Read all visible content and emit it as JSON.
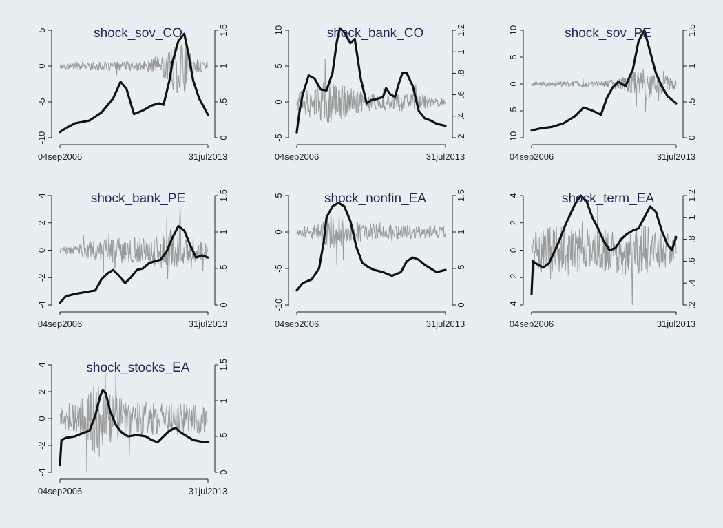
{
  "chart_data": [
    {
      "type": "line",
      "title": "shock_sov_CO",
      "xlim": [
        "04sep2006",
        "31jul2013"
      ],
      "x_tick_labels": [
        "04sep2006",
        "31jul2013"
      ],
      "ylim_left": [
        -10,
        5
      ],
      "y_left_ticks": [
        -10,
        -5,
        0,
        5
      ],
      "ylim_right": [
        0,
        1.5
      ],
      "y_right_ticks": [
        "0",
        ".5",
        "1",
        "1.5"
      ],
      "series": [
        {
          "axis": "right",
          "color": "#111111",
          "style": "thick",
          "x": [
            0,
            0.03,
            0.1,
            0.2,
            0.28,
            0.36,
            0.41,
            0.45,
            0.5,
            0.56,
            0.62,
            0.67,
            0.7,
            0.74,
            0.76,
            0.8,
            0.84,
            0.87,
            0.9,
            0.94,
            1
          ],
          "y": [
            0.08,
            0.12,
            0.2,
            0.24,
            0.35,
            0.55,
            0.78,
            0.68,
            0.33,
            0.38,
            0.45,
            0.48,
            0.46,
            0.8,
            1.05,
            1.35,
            1.45,
            1.15,
            0.8,
            0.55,
            0.32
          ]
        },
        {
          "axis": "left",
          "color": "#9a9a9a",
          "style": "noise",
          "x": [
            0,
            0.58,
            0.72,
            0.76,
            0.82,
            0.88,
            0.93,
            1
          ],
          "y": [
            0.5,
            0.7,
            1.8,
            3.5,
            4.6,
            2.2,
            1.0,
            0.6
          ]
        }
      ]
    },
    {
      "type": "line",
      "title": "shock_bank_CO",
      "xlim": [
        "04sep2006",
        "31jul2013"
      ],
      "x_tick_labels": [
        "04sep2006",
        "31jul2013"
      ],
      "ylim_left": [
        -5,
        10
      ],
      "y_left_ticks": [
        -5,
        0,
        5,
        10
      ],
      "ylim_right": [
        0.2,
        1.2
      ],
      "y_right_ticks": [
        ".2",
        ".4",
        ".6",
        ".8",
        "1",
        "1.2"
      ],
      "series": [
        {
          "axis": "right",
          "color": "#111111",
          "style": "thick",
          "x": [
            0,
            0.02,
            0.04,
            0.08,
            0.12,
            0.16,
            0.2,
            0.24,
            0.27,
            0.29,
            0.32,
            0.36,
            0.39,
            0.43,
            0.47,
            0.5,
            0.54,
            0.58,
            0.6,
            0.63,
            0.66,
            0.69,
            0.71,
            0.74,
            0.78,
            0.82,
            0.86,
            0.9,
            0.94,
            1
          ],
          "y": [
            0.25,
            0.46,
            0.6,
            0.78,
            0.75,
            0.65,
            0.64,
            0.8,
            1.1,
            1.22,
            1.18,
            1.08,
            1.12,
            0.75,
            0.52,
            0.55,
            0.56,
            0.58,
            0.66,
            0.6,
            0.58,
            0.72,
            0.8,
            0.8,
            0.68,
            0.45,
            0.38,
            0.36,
            0.33,
            0.31
          ]
        },
        {
          "axis": "left",
          "color": "#9a9a9a",
          "style": "noise",
          "x": [
            0,
            0.08,
            0.22,
            0.35,
            0.5,
            0.7,
            0.85,
            1
          ],
          "y": [
            1.2,
            2.2,
            3.0,
            2.0,
            1.2,
            1.3,
            1.0,
            0.5
          ]
        }
      ]
    },
    {
      "type": "line",
      "title": "shock_sov_PE",
      "xlim": [
        "04sep2006",
        "31jul2013"
      ],
      "x_tick_labels": [
        "04sep2006",
        "31jul2013"
      ],
      "ylim_left": [
        -10,
        10
      ],
      "y_left_ticks": [
        -10,
        -5,
        0,
        5,
        10
      ],
      "ylim_right": [
        0,
        1.5
      ],
      "y_right_ticks": [
        "0",
        ".5",
        "1",
        "1.5"
      ],
      "series": [
        {
          "axis": "right",
          "color": "#111111",
          "style": "thick",
          "x": [
            0,
            0.06,
            0.14,
            0.22,
            0.3,
            0.36,
            0.42,
            0.48,
            0.52,
            0.56,
            0.6,
            0.65,
            0.7,
            0.74,
            0.78,
            0.82,
            0.86,
            0.9,
            0.94,
            1
          ],
          "y": [
            0.1,
            0.13,
            0.15,
            0.2,
            0.3,
            0.42,
            0.38,
            0.32,
            0.55,
            0.7,
            0.78,
            0.72,
            0.95,
            1.35,
            1.5,
            1.2,
            0.9,
            0.72,
            0.58,
            0.48
          ]
        },
        {
          "axis": "left",
          "color": "#9a9a9a",
          "style": "noise",
          "x": [
            0,
            0.5,
            0.62,
            0.7,
            0.78,
            0.85,
            0.92,
            1
          ],
          "y": [
            0.4,
            0.6,
            1.2,
            2.2,
            3.2,
            2.2,
            1.5,
            1.0
          ]
        }
      ]
    },
    {
      "type": "line",
      "title": "shock_bank_PE",
      "xlim": [
        "04sep2006",
        "31jul2013"
      ],
      "x_tick_labels": [
        "04sep2006",
        "31jul2013"
      ],
      "ylim_left": [
        -4,
        4
      ],
      "y_left_ticks": [
        -4,
        -2,
        0,
        2,
        4
      ],
      "ylim_right": [
        0,
        1.5
      ],
      "y_right_ticks": [
        "0",
        ".5",
        "1",
        "1.5"
      ],
      "series": [
        {
          "axis": "right",
          "color": "#111111",
          "style": "thick",
          "x": [
            0,
            0.04,
            0.1,
            0.18,
            0.24,
            0.28,
            0.32,
            0.36,
            0.4,
            0.44,
            0.48,
            0.52,
            0.56,
            0.6,
            0.64,
            0.68,
            0.72,
            0.76,
            0.8,
            0.84,
            0.88,
            0.92,
            0.96,
            1
          ],
          "y": [
            0.03,
            0.12,
            0.15,
            0.18,
            0.2,
            0.35,
            0.43,
            0.48,
            0.4,
            0.3,
            0.38,
            0.48,
            0.5,
            0.57,
            0.6,
            0.62,
            0.73,
            0.92,
            1.08,
            1.02,
            0.82,
            0.65,
            0.68,
            0.65
          ]
        },
        {
          "axis": "left",
          "color": "#9a9a9a",
          "style": "noise",
          "x": [
            0,
            0.15,
            0.3,
            0.45,
            0.6,
            0.75,
            0.86,
            1
          ],
          "y": [
            0.2,
            0.5,
            0.9,
            1.0,
            1.0,
            1.6,
            1.2,
            0.6
          ]
        }
      ]
    },
    {
      "type": "line",
      "title": "shock_nonfin_EA",
      "xlim": [
        "04sep2006",
        "31jul2013"
      ],
      "x_tick_labels": [
        "04sep2006",
        "31jul2013"
      ],
      "ylim_left": [
        -10,
        5
      ],
      "y_left_ticks": [
        -10,
        -5,
        0,
        5
      ],
      "ylim_right": [
        0,
        1.5
      ],
      "y_right_ticks": [
        "0",
        ".5",
        "1",
        "1.5"
      ],
      "series": [
        {
          "axis": "right",
          "color": "#111111",
          "style": "thick",
          "x": [
            0,
            0.04,
            0.1,
            0.15,
            0.18,
            0.2,
            0.24,
            0.28,
            0.32,
            0.36,
            0.4,
            0.44,
            0.48,
            0.52,
            0.58,
            0.64,
            0.7,
            0.74,
            0.78,
            0.82,
            0.86,
            0.9,
            0.94,
            1
          ],
          "y": [
            0.2,
            0.3,
            0.35,
            0.5,
            0.85,
            1.2,
            1.35,
            1.4,
            1.35,
            1.15,
            0.8,
            0.58,
            0.52,
            0.48,
            0.45,
            0.4,
            0.45,
            0.6,
            0.65,
            0.62,
            0.55,
            0.5,
            0.45,
            0.48
          ]
        },
        {
          "axis": "left",
          "color": "#9a9a9a",
          "style": "noise",
          "x": [
            0,
            0.15,
            0.22,
            0.35,
            0.55,
            0.75,
            1
          ],
          "y": [
            0.6,
            1.2,
            2.5,
            1.6,
            1.1,
            1.0,
            0.9
          ]
        }
      ]
    },
    {
      "type": "line",
      "title": "shock_term_EA",
      "xlim": [
        "04sep2006",
        "31jul2013"
      ],
      "x_tick_labels": [
        "04sep2006",
        "31jul2013"
      ],
      "ylim_left": [
        -4,
        4
      ],
      "y_left_ticks": [
        -4,
        -2,
        0,
        2,
        4
      ],
      "ylim_right": [
        0.2,
        1.2
      ],
      "y_right_ticks": [
        ".2",
        ".4",
        ".6",
        ".8",
        "1",
        "1.2"
      ],
      "series": [
        {
          "axis": "right",
          "color": "#111111",
          "style": "thick",
          "x": [
            0,
            0.01,
            0.03,
            0.08,
            0.12,
            0.18,
            0.24,
            0.3,
            0.34,
            0.38,
            0.42,
            0.46,
            0.5,
            0.54,
            0.58,
            0.62,
            0.66,
            0.7,
            0.74,
            0.78,
            0.82,
            0.86,
            0.9,
            0.94,
            0.97,
            1
          ],
          "y": [
            0.3,
            0.6,
            0.58,
            0.54,
            0.58,
            0.75,
            0.95,
            1.12,
            1.2,
            1.15,
            1.0,
            0.9,
            0.78,
            0.7,
            0.72,
            0.8,
            0.85,
            0.88,
            0.9,
            1.0,
            1.1,
            1.05,
            0.88,
            0.75,
            0.7,
            0.82
          ]
        },
        {
          "axis": "left",
          "color": "#9a9a9a",
          "style": "noise",
          "x": [
            0,
            0.1,
            0.25,
            0.4,
            0.55,
            0.7,
            0.85,
            1
          ],
          "y": [
            1.6,
            1.8,
            1.8,
            1.6,
            1.8,
            2.0,
            1.6,
            1.2
          ]
        }
      ]
    },
    {
      "type": "line",
      "title": "shock_stocks_EA",
      "xlim": [
        "04sep2006",
        "31jul2013"
      ],
      "x_tick_labels": [
        "04sep2006",
        "31jul2013"
      ],
      "ylim_left": [
        -4,
        4
      ],
      "y_left_ticks": [
        -4,
        -2,
        0,
        2,
        4
      ],
      "ylim_right": [
        0,
        1.5
      ],
      "y_right_ticks": [
        "0",
        ".5",
        "1",
        "1.5"
      ],
      "series": [
        {
          "axis": "right",
          "color": "#111111",
          "style": "thick",
          "x": [
            0,
            0.01,
            0.04,
            0.1,
            0.16,
            0.2,
            0.24,
            0.27,
            0.29,
            0.31,
            0.34,
            0.38,
            0.42,
            0.46,
            0.52,
            0.58,
            0.62,
            0.66,
            0.7,
            0.74,
            0.78,
            0.82,
            0.86,
            0.9,
            0.95,
            1
          ],
          "y": [
            0.1,
            0.45,
            0.48,
            0.5,
            0.55,
            0.58,
            0.8,
            1.05,
            1.15,
            1.1,
            0.85,
            0.65,
            0.55,
            0.5,
            0.52,
            0.5,
            0.45,
            0.42,
            0.5,
            0.58,
            0.62,
            0.55,
            0.5,
            0.45,
            0.43,
            0.42
          ]
        },
        {
          "axis": "left",
          "color": "#9a9a9a",
          "style": "noise",
          "x": [
            0,
            0.15,
            0.26,
            0.35,
            0.5,
            0.7,
            0.9,
            1
          ],
          "y": [
            0.8,
            1.3,
            3.0,
            1.8,
            1.3,
            1.2,
            1.1,
            1.0
          ]
        }
      ]
    }
  ]
}
